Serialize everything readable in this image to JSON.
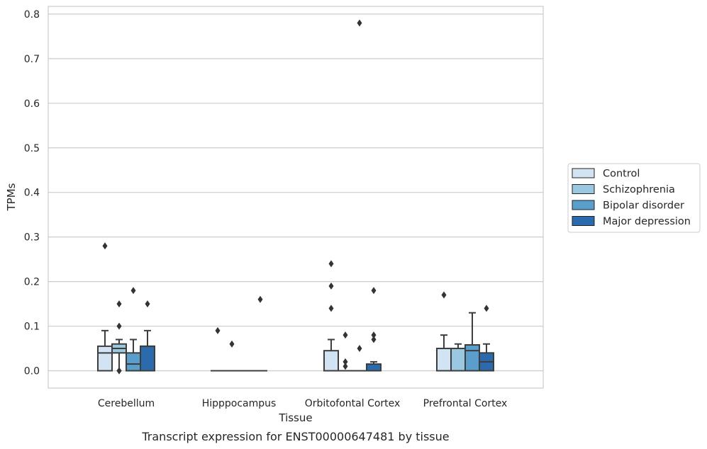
{
  "chart_data": {
    "type": "box",
    "title": "",
    "caption": "Transcript expression for ENST00000647481 by tissue",
    "xlabel": "Tissue",
    "ylabel": "TPMs",
    "ylim": [
      -0.04,
      0.82
    ],
    "yticks": [
      "0.0",
      "0.1",
      "0.2",
      "0.3",
      "0.4",
      "0.5",
      "0.6",
      "0.7",
      "0.8"
    ],
    "ytick_values": [
      0.0,
      0.1,
      0.2,
      0.3,
      0.4,
      0.5,
      0.6,
      0.7,
      0.8
    ],
    "grid": "horizontal",
    "legend_position": "right",
    "categories": [
      "Cerebellum",
      "Hipppocampus",
      "Orbitofontal Cortex",
      "Prefrontal Cortex"
    ],
    "series": [
      {
        "name": "Control",
        "color": "#d2e3f3",
        "boxes": [
          {
            "q1": 0.0,
            "median": 0.04,
            "q3": 0.055,
            "whisker_low": 0.0,
            "whisker_high": 0.09,
            "outliers": [
              0.28
            ]
          },
          {
            "q1": 0.0,
            "median": 0.0,
            "q3": 0.0,
            "whisker_low": 0.0,
            "whisker_high": 0.0,
            "outliers": [
              0.09
            ]
          },
          {
            "q1": 0.0,
            "median": 0.0,
            "q3": 0.045,
            "whisker_low": 0.0,
            "whisker_high": 0.07,
            "outliers": [
              0.24,
              0.19,
              0.14
            ]
          },
          {
            "q1": 0.0,
            "median": 0.0,
            "q3": 0.05,
            "whisker_low": 0.0,
            "whisker_high": 0.08,
            "outliers": [
              0.17
            ]
          }
        ]
      },
      {
        "name": "Schizophrenia",
        "color": "#9ac8e0",
        "boxes": [
          {
            "q1": 0.04,
            "median": 0.05,
            "q3": 0.06,
            "whisker_low": 0.0,
            "whisker_high": 0.07,
            "outliers": [
              0.15,
              0.1,
              0.0,
              0.0
            ]
          },
          {
            "q1": 0.0,
            "median": 0.0,
            "q3": 0.0,
            "whisker_low": 0.0,
            "whisker_high": 0.0,
            "outliers": [
              0.06
            ]
          },
          {
            "q1": 0.0,
            "median": 0.0,
            "q3": 0.0,
            "whisker_low": 0.0,
            "whisker_high": 0.0,
            "outliers": [
              0.08,
              0.02,
              0.01
            ]
          },
          {
            "q1": 0.0,
            "median": 0.0,
            "q3": 0.05,
            "whisker_low": 0.0,
            "whisker_high": 0.06,
            "outliers": []
          }
        ]
      },
      {
        "name": "Bipolar disorder",
        "color": "#5a9fcc",
        "boxes": [
          {
            "q1": 0.0,
            "median": 0.015,
            "q3": 0.04,
            "whisker_low": 0.0,
            "whisker_high": 0.07,
            "outliers": [
              0.18
            ]
          },
          {
            "q1": 0.0,
            "median": 0.0,
            "q3": 0.0,
            "whisker_low": 0.0,
            "whisker_high": 0.0,
            "outliers": []
          },
          {
            "q1": 0.0,
            "median": 0.0,
            "q3": 0.0,
            "whisker_low": 0.0,
            "whisker_high": 0.0,
            "outliers": [
              0.78,
              0.05
            ]
          },
          {
            "q1": 0.0,
            "median": 0.045,
            "q3": 0.058,
            "whisker_low": 0.0,
            "whisker_high": 0.13,
            "outliers": []
          }
        ]
      },
      {
        "name": "Major depression",
        "color": "#2a6aad",
        "boxes": [
          {
            "q1": 0.0,
            "median": 0.055,
            "q3": 0.055,
            "whisker_low": 0.0,
            "whisker_high": 0.09,
            "outliers": [
              0.15
            ]
          },
          {
            "q1": 0.0,
            "median": 0.0,
            "q3": 0.0,
            "whisker_low": 0.0,
            "whisker_high": 0.0,
            "outliers": [
              0.16
            ]
          },
          {
            "q1": 0.0,
            "median": 0.0,
            "q3": 0.015,
            "whisker_low": 0.0,
            "whisker_high": 0.02,
            "outliers": [
              0.18,
              0.08,
              0.07
            ]
          },
          {
            "q1": 0.0,
            "median": 0.02,
            "q3": 0.04,
            "whisker_low": 0.0,
            "whisker_high": 0.06,
            "outliers": [
              0.14
            ]
          }
        ]
      }
    ],
    "colors": {
      "grid": "#cccccc",
      "frame": "#cccccc",
      "box_edge": "#3d3d3d",
      "outlier": "#333333"
    }
  }
}
